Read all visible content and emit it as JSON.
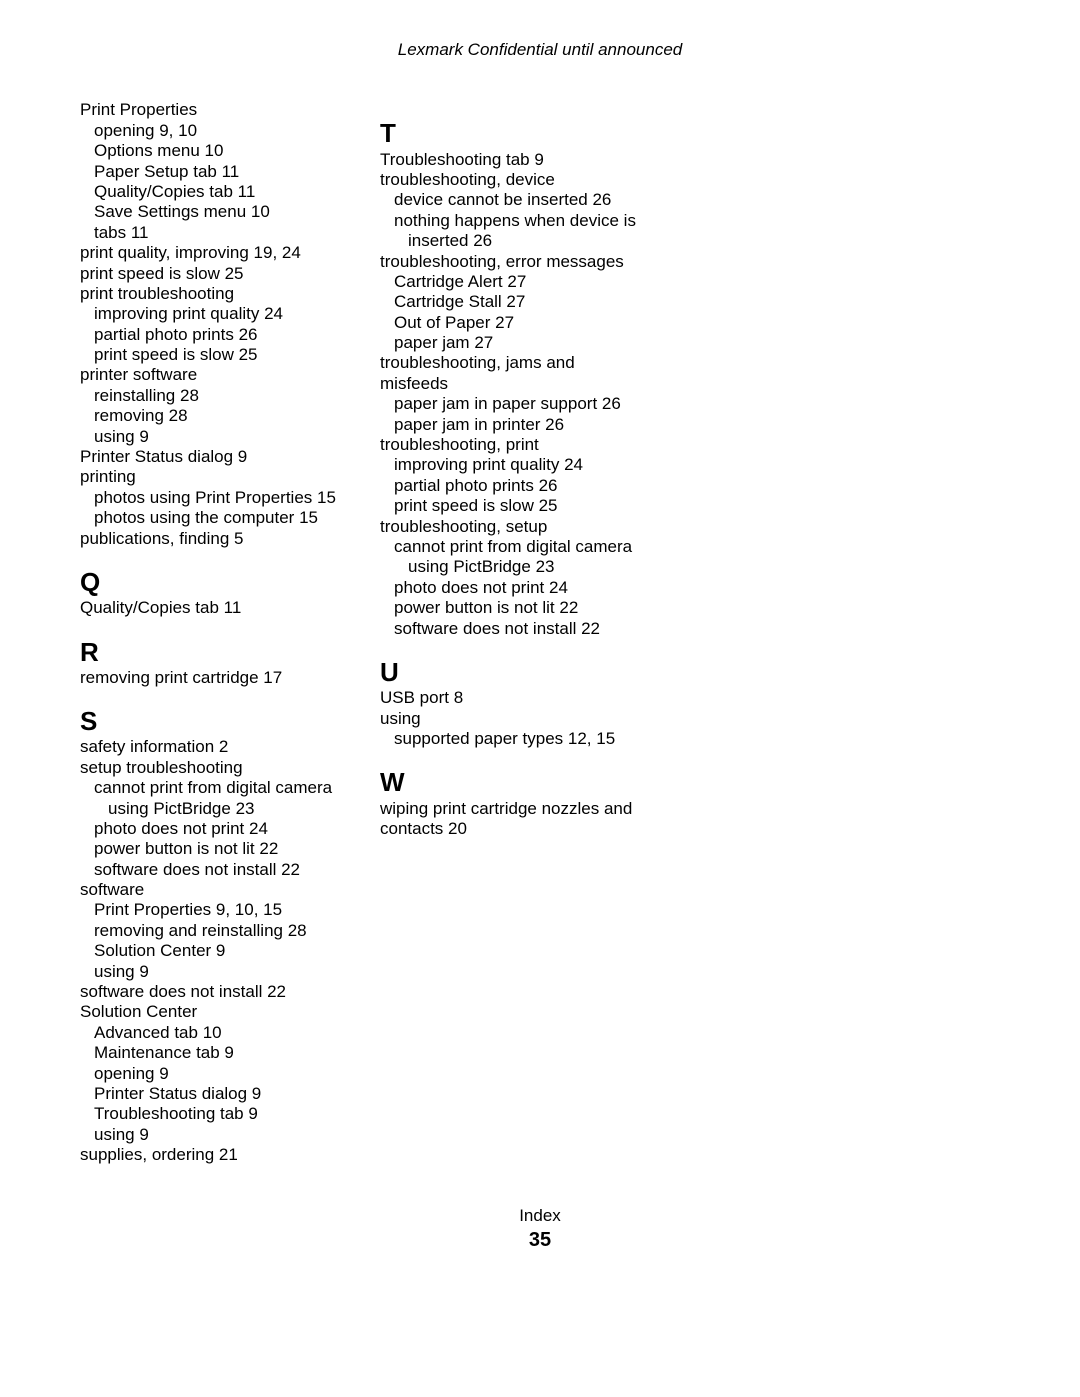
{
  "header": "Lexmark Confidential until announced",
  "footer": {
    "label": "Index",
    "page": "35"
  },
  "col1": [
    {
      "t": "Print Properties",
      "c": ""
    },
    {
      "t": "opening  9, 10",
      "c": "sub"
    },
    {
      "t": "Options menu  10",
      "c": "sub"
    },
    {
      "t": "Paper Setup tab  11",
      "c": "sub"
    },
    {
      "t": "Quality/Copies tab  11",
      "c": "sub"
    },
    {
      "t": "Save Settings menu  10",
      "c": "sub"
    },
    {
      "t": "tabs  11",
      "c": "sub"
    },
    {
      "t": "print quality, improving  19, 24",
      "c": ""
    },
    {
      "t": "print speed is slow  25",
      "c": ""
    },
    {
      "t": "print troubleshooting",
      "c": ""
    },
    {
      "t": "improving print quality  24",
      "c": "sub"
    },
    {
      "t": "partial photo prints  26",
      "c": "sub"
    },
    {
      "t": "print speed is slow  25",
      "c": "sub"
    },
    {
      "t": "printer software",
      "c": ""
    },
    {
      "t": "reinstalling  28",
      "c": "sub"
    },
    {
      "t": "removing  28",
      "c": "sub"
    },
    {
      "t": "using  9",
      "c": "sub"
    },
    {
      "t": "Printer Status dialog  9",
      "c": ""
    },
    {
      "t": "printing",
      "c": ""
    },
    {
      "t": "photos using Print Properties  15",
      "c": "sub"
    },
    {
      "t": "photos using the computer  15",
      "c": "sub"
    },
    {
      "t": "publications, finding  5",
      "c": ""
    },
    {
      "t": "Q",
      "c": "section-letter"
    },
    {
      "t": "Quality/Copies tab  11",
      "c": ""
    },
    {
      "t": "R",
      "c": "section-letter"
    },
    {
      "t": "removing print cartridge  17",
      "c": ""
    },
    {
      "t": "S",
      "c": "section-letter"
    },
    {
      "t": "safety information  2",
      "c": ""
    },
    {
      "t": "setup troubleshooting",
      "c": ""
    },
    {
      "t": "cannot print from digital camera",
      "c": "sub"
    },
    {
      "t": "using PictBridge  23",
      "c": "sub2"
    },
    {
      "t": "photo does not print  24",
      "c": "sub"
    },
    {
      "t": "power button is not lit  22",
      "c": "sub"
    },
    {
      "t": "software does not install  22",
      "c": "sub"
    },
    {
      "t": "software",
      "c": ""
    },
    {
      "t": "Print Properties  9, 10, 15",
      "c": "sub"
    },
    {
      "t": "removing and reinstalling  28",
      "c": "sub"
    },
    {
      "t": "Solution Center  9",
      "c": "sub"
    },
    {
      "t": "using  9",
      "c": "sub"
    },
    {
      "t": "software does not install  22",
      "c": ""
    },
    {
      "t": "Solution Center",
      "c": ""
    },
    {
      "t": "Advanced tab  10",
      "c": "sub"
    },
    {
      "t": "Maintenance tab  9",
      "c": "sub"
    },
    {
      "t": "opening  9",
      "c": "sub"
    },
    {
      "t": "Printer Status dialog  9",
      "c": "sub"
    },
    {
      "t": "Troubleshooting tab  9",
      "c": "sub"
    },
    {
      "t": "using  9",
      "c": "sub"
    },
    {
      "t": "supplies, ordering  21",
      "c": ""
    }
  ],
  "col2": [
    {
      "t": "T",
      "c": "section-letter"
    },
    {
      "t": "Troubleshooting tab  9",
      "c": ""
    },
    {
      "t": "troubleshooting, device",
      "c": ""
    },
    {
      "t": "device cannot be inserted  26",
      "c": "sub"
    },
    {
      "t": "nothing happens when device is",
      "c": "sub"
    },
    {
      "t": "inserted  26",
      "c": "sub2"
    },
    {
      "t": "troubleshooting, error messages",
      "c": ""
    },
    {
      "t": "Cartridge Alert  27",
      "c": "sub"
    },
    {
      "t": "Cartridge Stall  27",
      "c": "sub"
    },
    {
      "t": "Out of Paper  27",
      "c": "sub"
    },
    {
      "t": "paper jam  27",
      "c": "sub"
    },
    {
      "t": "troubleshooting, jams and",
      "c": ""
    },
    {
      "t": "misfeeds",
      "c": ""
    },
    {
      "t": "paper jam in paper support  26",
      "c": "sub"
    },
    {
      "t": "paper jam in printer  26",
      "c": "sub"
    },
    {
      "t": "troubleshooting, print",
      "c": ""
    },
    {
      "t": "improving print quality  24",
      "c": "sub"
    },
    {
      "t": "partial photo prints  26",
      "c": "sub"
    },
    {
      "t": "print speed is slow  25",
      "c": "sub"
    },
    {
      "t": "troubleshooting, setup",
      "c": ""
    },
    {
      "t": "cannot print from digital camera",
      "c": "sub"
    },
    {
      "t": "using PictBridge  23",
      "c": "sub2"
    },
    {
      "t": "photo does not print  24",
      "c": "sub"
    },
    {
      "t": "power button is not lit  22",
      "c": "sub"
    },
    {
      "t": "software does not install  22",
      "c": "sub"
    },
    {
      "t": "U",
      "c": "section-letter"
    },
    {
      "t": "USB port  8",
      "c": ""
    },
    {
      "t": "using",
      "c": ""
    },
    {
      "t": "supported paper types  12, 15",
      "c": "sub"
    },
    {
      "t": "W",
      "c": "section-letter"
    },
    {
      "t": "wiping print cartridge nozzles and",
      "c": ""
    },
    {
      "t": "contacts  20",
      "c": ""
    }
  ]
}
